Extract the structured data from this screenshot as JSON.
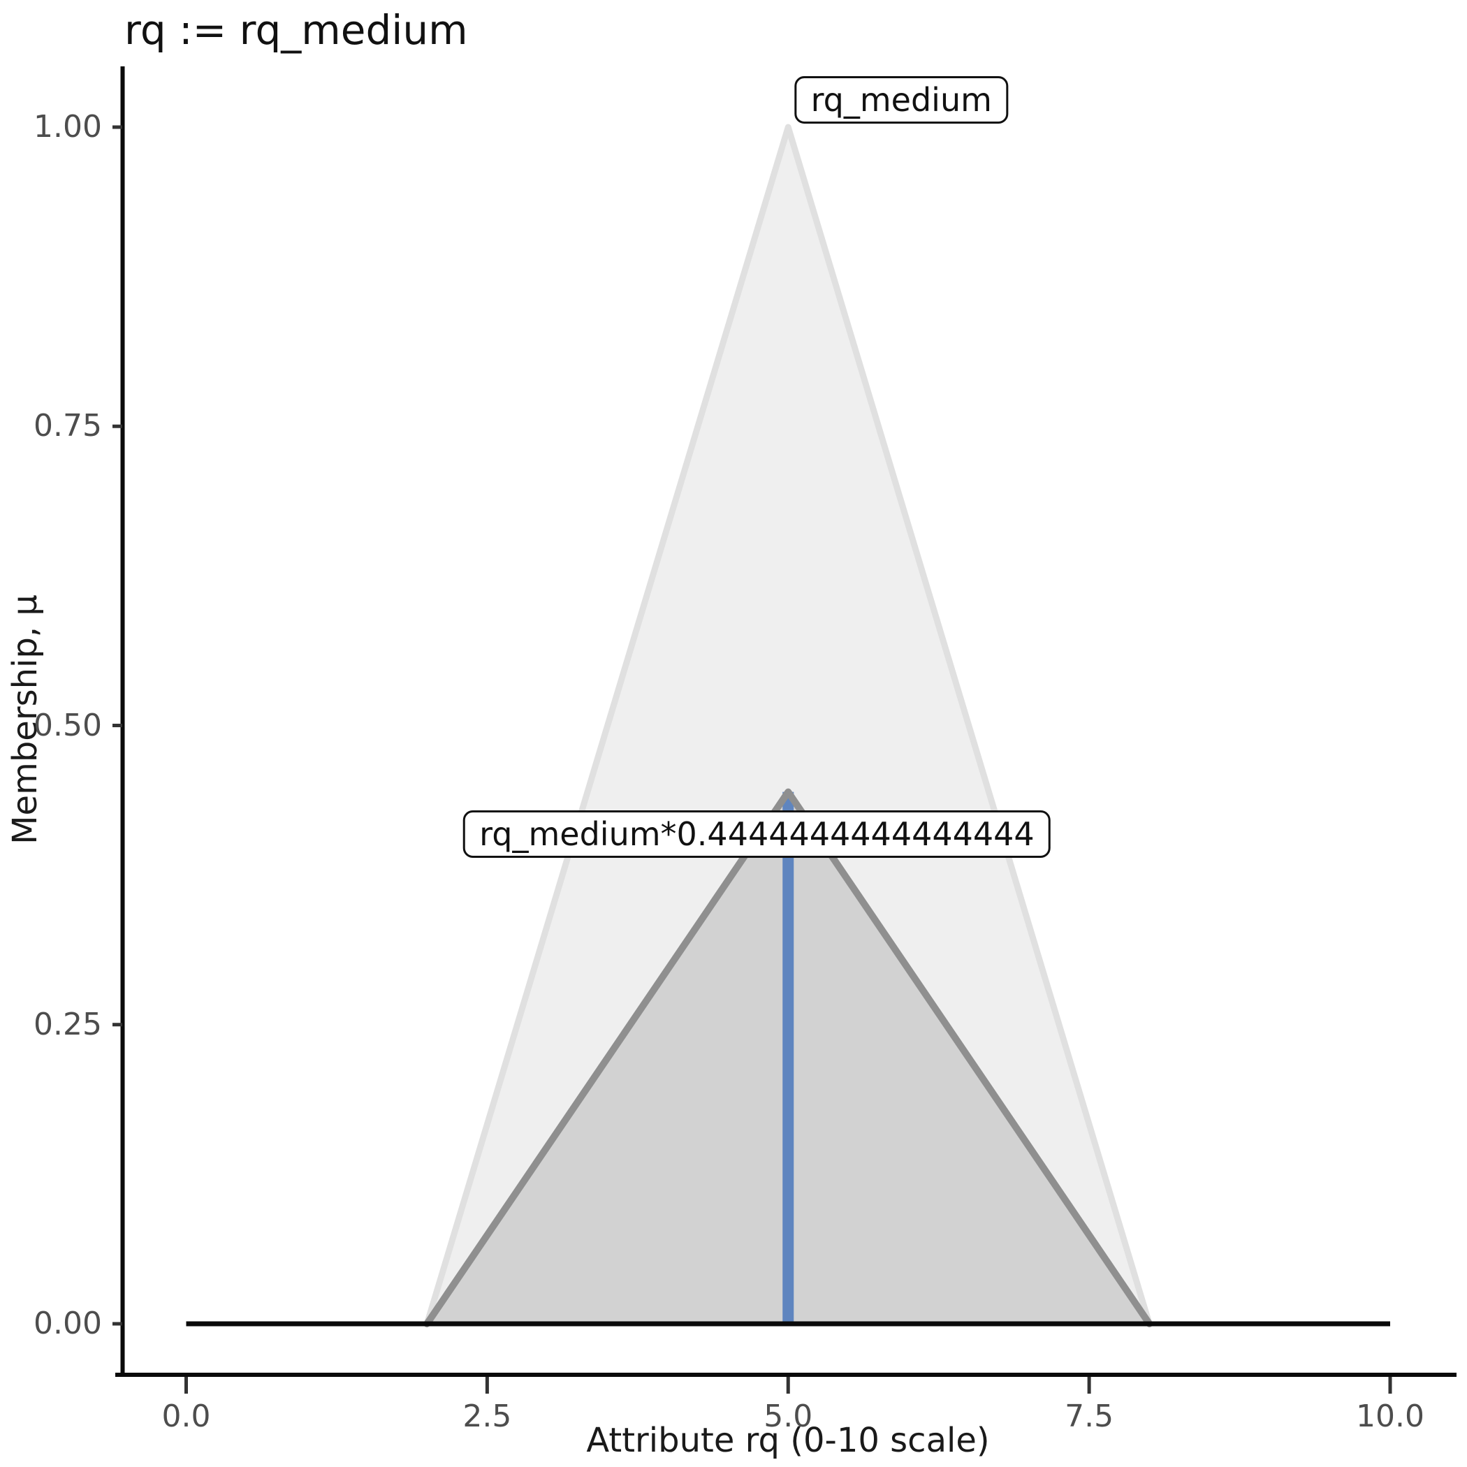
{
  "title": "rq := rq_medium",
  "chart_data": {
    "type": "area",
    "title": "rq := rq_medium",
    "xlabel": "Attribute rq (0-10 scale)",
    "ylabel": "Membership, μ",
    "xlim": [
      0,
      10
    ],
    "ylim": [
      0,
      1
    ],
    "grid": "off",
    "legend": "none",
    "x_axis": {
      "values": [
        0,
        2.5,
        5,
        7.5,
        10
      ],
      "labels": [
        "0.0",
        "2.5",
        "5.0",
        "7.5",
        "10.0"
      ]
    },
    "y_axis": {
      "values": [
        0,
        0.25,
        0.5,
        0.75,
        1.0
      ],
      "labels": [
        "0.00",
        "0.25",
        "0.50",
        "0.75",
        "1.00"
      ]
    },
    "sets": [
      {
        "name": "rq_medium",
        "points": [
          [
            2,
            0
          ],
          [
            5,
            1
          ],
          [
            8,
            0
          ]
        ],
        "fill": "#efefef",
        "stroke": "#e0e0e0",
        "stroke_width": 9
      },
      {
        "name": "rq_medium*0.4444444444444444",
        "points": [
          [
            2,
            0
          ],
          [
            5,
            0.4444444444444444
          ],
          [
            8,
            0
          ]
        ],
        "fill": "#d2d2d2",
        "stroke": "#8f8f8f",
        "stroke_width": 10
      }
    ],
    "vline": {
      "x": 5,
      "y_from": 0,
      "y_to": 0.4444444444444444,
      "color": "#5f85bf",
      "width": 16
    },
    "baseline": {
      "x_from": 0,
      "x_to": 10,
      "y": 0,
      "color": "#0a0a0a",
      "width": 7
    },
    "annotations": [
      {
        "text": "rq_medium",
        "x": 5.94,
        "y": 1.023
      },
      {
        "text": "rq_medium*0.4444444444444444",
        "x": 4.74,
        "y": 0.409
      }
    ]
  }
}
